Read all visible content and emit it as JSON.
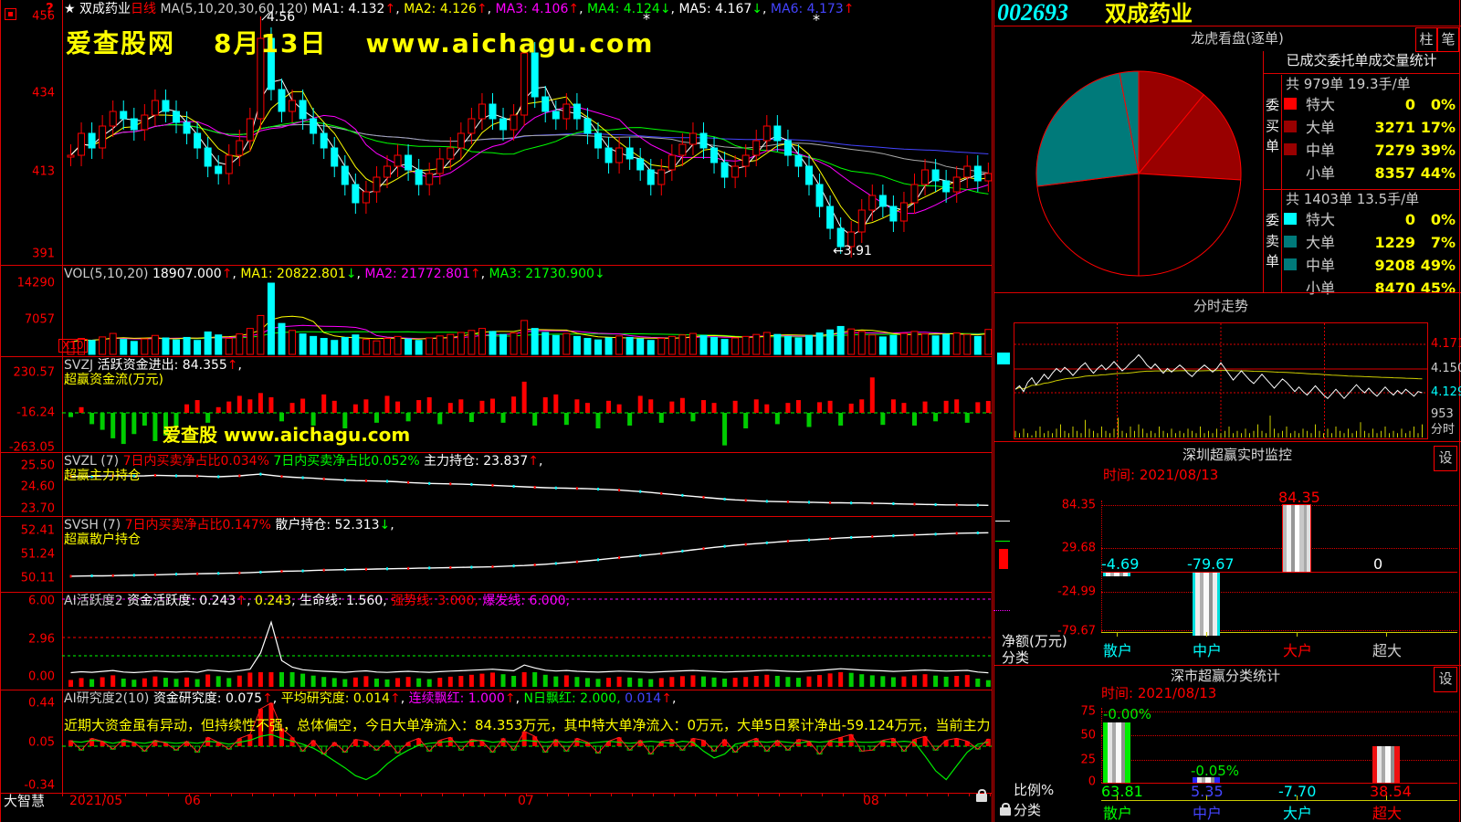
{
  "palette": {
    "red": "#ff0000",
    "cyan": "#00ffff",
    "yellow": "#ffff00",
    "green": "#00ff00",
    "magenta": "#ff00ff",
    "blue": "#4444ff",
    "white": "#ffffff",
    "gray": "#cccccc",
    "dark_red": "#990000",
    "teal": "#007a7a",
    "black": "#000000"
  },
  "brand": "大智慧",
  "watermark": {
    "site": "爱查股网",
    "date": "8月13日",
    "url": "www.aichagu.com",
    "inner": "爱查股 www.aichagu.com"
  },
  "stock": {
    "code": "002693",
    "name": "双成药业"
  },
  "main": {
    "header": [
      [
        "★ ",
        "white"
      ],
      [
        "双成药业",
        "white"
      ],
      [
        "日线",
        "red"
      ],
      [
        " MA(5,10,20,30,60,120)  ",
        "gray"
      ],
      [
        "MA1: 4.132",
        "white"
      ],
      [
        "↑",
        "red"
      ],
      [
        ", ",
        "white"
      ],
      [
        "MA2: 4.126",
        "yellow"
      ],
      [
        "↑",
        "red"
      ],
      [
        ", ",
        "white"
      ],
      [
        "MA3: 4.106",
        "magenta"
      ],
      [
        "↑",
        "red"
      ],
      [
        ", ",
        "white"
      ],
      [
        "MA4: 4.124",
        "green"
      ],
      [
        "↓",
        "green"
      ],
      [
        ", ",
        "white"
      ],
      [
        "MA5: 4.167",
        "white"
      ],
      [
        "↓",
        "green"
      ],
      [
        ", ",
        "white"
      ],
      [
        "MA6: 4.173",
        "blue"
      ],
      [
        "↑",
        "red"
      ]
    ],
    "axis": [
      "456",
      "434",
      "413",
      "391"
    ],
    "high_label": "4.56",
    "low_label": "←3.91",
    "months": [
      "2021/05",
      "06",
      "07",
      "08"
    ],
    "closes": [
      418,
      424,
      420,
      426,
      430,
      428,
      425,
      429,
      433,
      430,
      427,
      424,
      420,
      415,
      413,
      418,
      422,
      428,
      450,
      436,
      430,
      433,
      428,
      424,
      420,
      415,
      410,
      405,
      408,
      412,
      415,
      418,
      414,
      410,
      413,
      417,
      420,
      424,
      428,
      432,
      428,
      425,
      429,
      446,
      434,
      430,
      428,
      432,
      428,
      424,
      420,
      416,
      420,
      417,
      414,
      410,
      414,
      418,
      421,
      424,
      420,
      416,
      412,
      415,
      418,
      422,
      426,
      422,
      418,
      415,
      410,
      404,
      398,
      393,
      397,
      403,
      407,
      404,
      400,
      405,
      410,
      414,
      411,
      408,
      412,
      415,
      411,
      413
    ],
    "high_overrides": {
      "18": 456,
      "43": 448
    },
    "low_overrides": {
      "73": 391
    }
  },
  "volume": {
    "header": [
      [
        "VOL(5,10,20) ",
        "gray"
      ],
      [
        "18907.000",
        "white"
      ],
      [
        "↑",
        "red"
      ],
      [
        ", ",
        "white"
      ],
      [
        "MA1: 20822.801",
        "yellow"
      ],
      [
        "↓",
        "green"
      ],
      [
        ", ",
        "white"
      ],
      [
        "MA2: 21772.801",
        "magenta"
      ],
      [
        "↑",
        "red"
      ],
      [
        ", ",
        "white"
      ],
      [
        "MA3: 21730.900",
        "green"
      ],
      [
        "↓",
        "green"
      ]
    ],
    "axis": [
      "14290",
      "7057"
    ],
    "multiplier": "X10",
    "values": [
      2500,
      3200,
      2800,
      3500,
      4200,
      3000,
      2600,
      3100,
      3800,
      3300,
      2900,
      3400,
      2800,
      4500,
      3900,
      3200,
      4100,
      5200,
      7800,
      14290,
      6200,
      4800,
      4100,
      3600,
      3200,
      2800,
      3400,
      3900,
      3000,
      2700,
      3200,
      3600,
      3100,
      2800,
      3300,
      3700,
      4000,
      4400,
      4800,
      5200,
      4600,
      4000,
      4300,
      6800,
      5200,
      4400,
      3800,
      4200,
      3600,
      3200,
      2900,
      3300,
      3700,
      3400,
      3100,
      2800,
      3200,
      3600,
      3900,
      4200,
      3800,
      3400,
      3000,
      3300,
      3600,
      4000,
      4400,
      4000,
      3600,
      3300,
      3800,
      4300,
      4900,
      5600,
      5100,
      4600,
      3900,
      3500,
      3800,
      4200,
      4600,
      4100,
      3700,
      4000,
      4300,
      4000,
      3600,
      5000
    ]
  },
  "svzj": {
    "header": [
      [
        "SVZJ  ",
        "gray"
      ],
      [
        "活跃资金进出: 84.355",
        "white"
      ],
      [
        "↑",
        "red"
      ],
      [
        ",",
        "white"
      ]
    ],
    "name": "超赢资金流(万元)",
    "axis": [
      "230.57",
      "-16.24",
      "-263.05"
    ],
    "values": [
      -30,
      40,
      -80,
      -120,
      -180,
      -220,
      -150,
      -90,
      -200,
      -160,
      -100,
      60,
      90,
      -70,
      40,
      80,
      120,
      95,
      140,
      110,
      -60,
      70,
      100,
      -90,
      130,
      85,
      -110,
      60,
      95,
      -70,
      120,
      80,
      -60,
      90,
      110,
      -80,
      70,
      95,
      -65,
      85,
      100,
      -70,
      115,
      220,
      -90,
      110,
      130,
      -85,
      95,
      70,
      -110,
      85,
      60,
      -90,
      120,
      95,
      -70,
      80,
      105,
      -60,
      90,
      70,
      -230,
      85,
      -110,
      95,
      60,
      -80,
      70,
      90,
      -100,
      75,
      85,
      -90,
      65,
      95,
      250,
      -85,
      95,
      70,
      -90,
      80,
      -60,
      85,
      95,
      -70,
      75,
      84
    ]
  },
  "svzl": {
    "header": [
      [
        "SVZL (7) ",
        "gray"
      ],
      [
        "7日内买卖净占比0.034% ",
        "red"
      ],
      [
        "7日内买卖净占比0.052% ",
        "green"
      ],
      [
        "主力持仓: 23.837",
        "white"
      ],
      [
        "↑",
        "red"
      ],
      [
        ",",
        "white"
      ]
    ],
    "name": "超赢主力持仓",
    "axis": [
      "25.50",
      "24.60",
      "23.70"
    ],
    "values": [
      25.05,
      25.06,
      25.05,
      25.07,
      25.08,
      25.08,
      25.07,
      25.08,
      25.1,
      25.09,
      25.08,
      25.08,
      25.07,
      25.05,
      25.04,
      25.06,
      25.08,
      25.12,
      25.15,
      25.1,
      25.05,
      25.02,
      25.0,
      24.98,
      24.95,
      24.92,
      24.9,
      24.88,
      24.87,
      24.86,
      24.85,
      24.83,
      24.8,
      24.78,
      24.76,
      24.75,
      24.74,
      24.73,
      24.72,
      24.7,
      24.68,
      24.66,
      24.64,
      24.62,
      24.6,
      24.58,
      24.57,
      24.56,
      24.55,
      24.54,
      24.52,
      24.5,
      24.48,
      24.45,
      24.42,
      24.38,
      24.34,
      24.3,
      24.26,
      24.22,
      24.18,
      24.14,
      24.1,
      24.07,
      24.05,
      24.03,
      24.01,
      24.0,
      23.99,
      23.98,
      23.97,
      23.96,
      23.95,
      23.95,
      23.94,
      23.94,
      23.93,
      23.92,
      23.91,
      23.9,
      23.89,
      23.88,
      23.87,
      23.86,
      23.86,
      23.85,
      23.85,
      23.84
    ]
  },
  "svsh": {
    "header": [
      [
        "SVSH (7) ",
        "gray"
      ],
      [
        "7日内买卖净占比0.147% ",
        "red"
      ],
      [
        "散户持仓: 52.313",
        "white"
      ],
      [
        "↓",
        "green"
      ],
      [
        ",",
        "white"
      ]
    ],
    "name": "超赢散户持仓",
    "axis": [
      "52.41",
      "51.24",
      "50.11"
    ],
    "values": [
      50.2,
      50.21,
      50.22,
      50.22,
      50.23,
      50.24,
      50.25,
      50.26,
      50.27,
      50.28,
      50.3,
      50.31,
      50.32,
      50.33,
      50.34,
      50.35,
      50.36,
      50.38,
      50.4,
      50.42,
      50.44,
      50.45,
      50.46,
      50.48,
      50.5,
      50.51,
      50.52,
      50.53,
      50.54,
      50.55,
      50.56,
      50.57,
      50.58,
      50.59,
      50.6,
      50.61,
      50.62,
      50.63,
      50.64,
      50.65,
      50.66,
      50.68,
      50.7,
      50.72,
      50.75,
      50.78,
      50.82,
      50.86,
      50.9,
      50.95,
      51.0,
      51.05,
      51.1,
      51.15,
      51.2,
      51.25,
      51.3,
      51.36,
      51.42,
      51.48,
      51.54,
      51.6,
      51.65,
      51.7,
      51.74,
      51.78,
      51.82,
      51.86,
      51.9,
      51.93,
      51.96,
      51.99,
      52.02,
      52.05,
      52.08,
      52.1,
      52.12,
      52.14,
      52.16,
      52.18,
      52.2,
      52.22,
      52.24,
      52.26,
      52.28,
      52.29,
      52.3,
      52.31
    ]
  },
  "ai1": {
    "header": [
      [
        "AI活跃度2 ",
        "gray"
      ],
      [
        "资金活跃度: 0.243",
        "white"
      ],
      [
        "↑",
        "red"
      ],
      [
        ", ",
        "white"
      ],
      [
        "0.243",
        "yellow"
      ],
      [
        ", ",
        "white"
      ],
      [
        "生命线: 1.560",
        "white"
      ],
      [
        ", ",
        "white"
      ],
      [
        "强势线: 3.000",
        "red"
      ],
      [
        ", ",
        "red"
      ],
      [
        "爆发线: 6.000",
        "magenta"
      ],
      [
        ",",
        "magenta"
      ]
    ],
    "axis": [
      "6.00",
      "2.96",
      "0.00"
    ],
    "values": [
      0.25,
      0.32,
      0.28,
      0.35,
      0.42,
      0.3,
      0.26,
      0.31,
      0.38,
      0.33,
      0.29,
      0.34,
      0.28,
      0.45,
      0.39,
      0.32,
      0.41,
      0.52,
      1.8,
      4.2,
      1.2,
      0.68,
      0.48,
      0.41,
      0.36,
      0.32,
      0.28,
      0.34,
      0.39,
      0.3,
      0.27,
      0.32,
      0.36,
      0.31,
      0.28,
      0.33,
      0.37,
      0.4,
      0.44,
      0.48,
      0.52,
      0.46,
      0.4,
      0.85,
      0.62,
      0.44,
      0.38,
      0.42,
      0.36,
      0.32,
      0.29,
      0.33,
      0.37,
      0.34,
      0.31,
      0.28,
      0.32,
      0.36,
      0.39,
      0.42,
      0.38,
      0.34,
      0.3,
      0.33,
      0.36,
      0.4,
      0.44,
      0.4,
      0.36,
      0.33,
      0.38,
      0.43,
      0.49,
      0.56,
      0.51,
      0.46,
      0.42,
      0.39,
      0.35,
      0.38,
      0.42,
      0.46,
      0.41,
      0.37,
      0.4,
      0.43,
      0.3,
      0.243
    ]
  },
  "ai2": {
    "header": [
      [
        "AI研究度2(10) ",
        "gray"
      ],
      [
        "资金研究度: 0.075",
        "white"
      ],
      [
        "↑",
        "red"
      ],
      [
        ", ",
        "white"
      ],
      [
        "平均研究度: 0.014",
        "yellow"
      ],
      [
        "↑",
        "red"
      ],
      [
        ", ",
        "white"
      ],
      [
        "连续飘红: 1.000",
        "magenta"
      ],
      [
        "↑",
        "red"
      ],
      [
        ", ",
        "white"
      ],
      [
        "N日飘红: 2.000",
        "green"
      ],
      [
        ", ",
        "green"
      ],
      [
        "0.014",
        "blue"
      ],
      [
        "↑",
        "red"
      ],
      [
        ",",
        "white"
      ]
    ],
    "note": "近期大资金虽有异动，但持续性不强，总体偏空，今日大单净流入：84.353万元，其中特大单净流入：0万元，大单5日累计净出-59.124万元，当前主力控盘较",
    "axis": [
      "0.44",
      "0.05",
      "-0.34"
    ],
    "bars": [
      0.06,
      -0.04,
      0.08,
      0.05,
      -0.03,
      0.07,
      0.04,
      -0.05,
      0.06,
      0.03,
      -0.04,
      0.05,
      -0.06,
      0.09,
      0.04,
      -0.03,
      0.08,
      0.12,
      0.38,
      0.44,
      0.18,
      0.09,
      -0.05,
      0.06,
      -0.08,
      0.04,
      -0.06,
      0.07,
      0.05,
      -0.04,
      0.06,
      -0.07,
      0.04,
      0.08,
      -0.05,
      0.06,
      0.09,
      -0.04,
      0.07,
      0.05,
      -0.06,
      0.08,
      -0.04,
      0.15,
      0.1,
      -0.06,
      0.07,
      -0.05,
      0.08,
      0.04,
      -0.07,
      0.05,
      0.09,
      -0.04,
      0.06,
      -0.08,
      0.05,
      0.07,
      -0.04,
      0.08,
      0.06,
      -0.05,
      0.07,
      -0.06,
      0.04,
      0.08,
      -0.05,
      0.06,
      -0.04,
      0.07,
      0.05,
      -0.08,
      0.06,
      0.09,
      0.12,
      -0.05,
      -0.04,
      0.06,
      0.08,
      -0.05,
      0.07,
      0.1,
      -0.04,
      0.06,
      0.08,
      0.05,
      -0.03,
      0.075
    ],
    "line": [
      0.05,
      0.04,
      0.06,
      0.05,
      0.03,
      0.05,
      0.04,
      0.03,
      0.05,
      0.04,
      0.03,
      0.04,
      0.03,
      0.05,
      0.04,
      0.02,
      0.04,
      0.06,
      0.1,
      0.12,
      0.08,
      0.05,
      0.02,
      -0.02,
      -0.08,
      -0.15,
      -0.22,
      -0.3,
      -0.34,
      -0.28,
      -0.18,
      -0.1,
      -0.04,
      0.01,
      0.03,
      0.04,
      0.05,
      0.04,
      0.05,
      0.06,
      0.04,
      0.05,
      0.04,
      0.06,
      0.05,
      0.04,
      0.05,
      0.04,
      0.05,
      0.03,
      0.04,
      0.05,
      0.04,
      0.03,
      0.04,
      0.05,
      0.04,
      0.03,
      0.05,
      0.04,
      -0.05,
      -0.12,
      -0.08,
      0.02,
      0.04,
      0.05,
      0.04,
      0.05,
      0.04,
      0.03,
      0.05,
      0.04,
      0.05,
      0.04,
      0.05,
      0.04,
      0.04,
      0.05,
      0.04,
      0.05,
      0.04,
      -0.1,
      -0.25,
      -0.34,
      -0.2,
      -0.06,
      0.02,
      0.04
    ]
  },
  "orderflow": {
    "title": "龙虎看盘(逐单)",
    "btn_bar": "柱",
    "btn_pen": "笔",
    "table_title": "已成交委托单成交量统计",
    "pie": {
      "slices": [
        {
          "frac": 0.11,
          "color": "dark_red"
        },
        {
          "frac": 0.15,
          "color": "dark_red"
        },
        {
          "frac": 0.24,
          "color": "black"
        },
        {
          "frac": 0.23,
          "color": "black"
        },
        {
          "frac": 0.24,
          "color": "teal"
        },
        {
          "frac": 0.03,
          "color": "teal"
        }
      ]
    },
    "buy": {
      "side_label": "委买单",
      "summary": "共 979单 19.3手/单",
      "rows": [
        {
          "name": "特大",
          "vol": "0",
          "pct": "0%",
          "swatch": "#ff0000"
        },
        {
          "name": "大单",
          "vol": "3271",
          "pct": "17%",
          "swatch": "#990000"
        },
        {
          "name": "中单",
          "vol": "7279",
          "pct": "39%",
          "swatch": "#990000"
        },
        {
          "name": "小单",
          "vol": "8357",
          "pct": "44%",
          "swatch": ""
        }
      ]
    },
    "sell": {
      "side_label": "委卖单",
      "summary": "共 1403单 13.5手/单",
      "rows": [
        {
          "name": "特大",
          "vol": "0",
          "pct": "0%",
          "swatch": "#00ffff"
        },
        {
          "name": "大单",
          "vol": "1229",
          "pct": "7%",
          "swatch": "#007a7a"
        },
        {
          "name": "中单",
          "vol": "9208",
          "pct": "49%",
          "swatch": "#007a7a"
        },
        {
          "name": "小单",
          "vol": "8470",
          "pct": "45%",
          "swatch": ""
        }
      ]
    }
  },
  "fenshi": {
    "title": "分时走势",
    "price_labels": [
      {
        "text": "4.171",
        "color": "red"
      },
      {
        "text": "4.150",
        "color": "gray"
      },
      {
        "text": "4.129",
        "color": "cyan"
      }
    ],
    "vol_label": "953",
    "tag": "分时",
    "prices": [
      4.132,
      4.135,
      4.13,
      4.138,
      4.142,
      4.136,
      4.14,
      4.145,
      4.141,
      4.146,
      4.15,
      4.147,
      4.151,
      4.148,
      4.144,
      4.148,
      4.152,
      4.155,
      4.15,
      4.146,
      4.15,
      4.153,
      4.149,
      4.152,
      4.156,
      4.152,
      4.148,
      4.151,
      4.155,
      4.158,
      4.162,
      4.158,
      4.153,
      4.15,
      4.154,
      4.15,
      4.146,
      4.15,
      4.147,
      4.15,
      4.153,
      4.15,
      4.146,
      4.143,
      4.147,
      4.15,
      4.153,
      4.15,
      4.147,
      4.15,
      4.155,
      4.15,
      4.145,
      4.14,
      4.144,
      4.148,
      4.144,
      4.14,
      4.137,
      4.141,
      4.145,
      4.141,
      4.137,
      4.133,
      4.137,
      4.141,
      4.138,
      4.134,
      4.13,
      4.134,
      4.13,
      4.127,
      4.131,
      4.135,
      4.131,
      4.127,
      4.124,
      4.128,
      4.132,
      4.128,
      4.124,
      4.128,
      4.132,
      4.136,
      4.132,
      4.129,
      4.133,
      4.129,
      4.126,
      4.13,
      4.134,
      4.13,
      4.127,
      4.131,
      4.128,
      4.132,
      4.129,
      4.126,
      4.13,
      4.129
    ],
    "vols": [
      3,
      2,
      4,
      2,
      1,
      3,
      5,
      2,
      3,
      2,
      4,
      6,
      3,
      2,
      5,
      3,
      2,
      8,
      4,
      3,
      2,
      5,
      3,
      2,
      4,
      9,
      3,
      2,
      5,
      3,
      6,
      4,
      2,
      3,
      2,
      5,
      3,
      2,
      4,
      2,
      3,
      2,
      4,
      3,
      2,
      5,
      2,
      3,
      2,
      4,
      2,
      3,
      5,
      2,
      3,
      2,
      4,
      2,
      3,
      6,
      3,
      2,
      10,
      4,
      2,
      3,
      5,
      2,
      3,
      2,
      4,
      3,
      2,
      6,
      3,
      2,
      4,
      2,
      5,
      3,
      2,
      4,
      2,
      3,
      7,
      3,
      2,
      4,
      2,
      3,
      5,
      2,
      3,
      2,
      4,
      2,
      3,
      5,
      2,
      6
    ]
  },
  "monitor": {
    "title": "深圳超赢实时监控",
    "btn": "设",
    "time": "时间: 2021/08/13",
    "y_labels": [
      "84.35",
      "29.68",
      "-24.99",
      "-79.67"
    ],
    "unit": "净额(万元)",
    "cls": "分类",
    "categories": [
      "散户",
      "中户",
      "大户",
      "超大"
    ],
    "values": [
      -4.69,
      -79.67,
      84.35,
      0
    ],
    "value_labels": [
      "-4.69",
      "-79.67",
      "84.35",
      "0"
    ],
    "value_colors": [
      "cyan",
      "cyan",
      "red",
      "white"
    ],
    "cat_colors": [
      "cyan",
      "cyan",
      "red",
      "gray"
    ]
  },
  "stats": {
    "title": "深市超赢分类统计",
    "btn": "设",
    "time": "时间: 2021/08/13",
    "y_labels": [
      "75",
      "50",
      "25",
      "0"
    ],
    "unit": "比例%",
    "cls": "分类",
    "categories": [
      "散户",
      "中户",
      "大户",
      "超大"
    ],
    "values": [
      63.81,
      5.35,
      -7.7,
      38.54
    ],
    "value_labels": [
      "63.81",
      "5.35",
      "-7.70",
      "38.54"
    ],
    "value_colors": [
      "green",
      "blue",
      "cyan",
      "red"
    ],
    "cat_colors": [
      "green",
      "blue",
      "cyan",
      "red"
    ],
    "pct_labels": [
      {
        "text": "-0.00%",
        "col": 0
      },
      {
        "text": "-0.05%",
        "col": 1
      }
    ]
  }
}
